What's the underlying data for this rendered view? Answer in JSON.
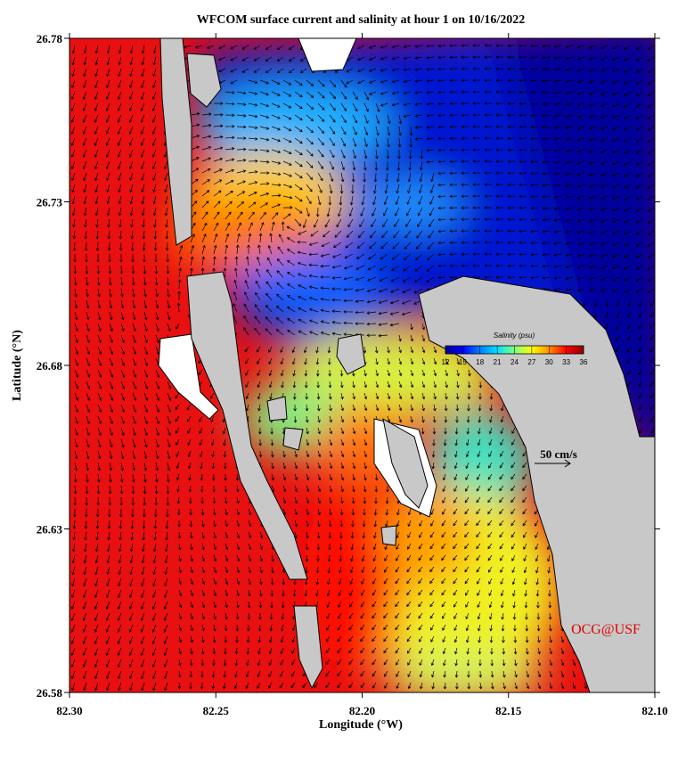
{
  "chart_data": {
    "type": "map",
    "title": "WFCOM surface current and salinity at hour 1 on 10/16/2022",
    "x_label": "Longitude (°W)",
    "y_label": "Latitude (°N)",
    "xlim": [
      82.3,
      82.1
    ],
    "xticks": [
      {
        "value": 82.3,
        "label": "82.30"
      },
      82.25,
      {
        "value": 82.2,
        "label": "82.20"
      },
      82.15,
      {
        "value": 82.1,
        "label": "82.10"
      }
    ],
    "ylim": [
      26.58,
      26.78
    ],
    "yticks": [
      26.58,
      26.63,
      26.68,
      26.73,
      26.78
    ],
    "colorbar": {
      "title": "Salinity (psu)",
      "lim": [
        12,
        36
      ],
      "ticks": [
        12,
        15,
        18,
        21,
        24,
        27,
        30,
        33,
        36
      ],
      "colors": [
        "#00008f",
        "#0000ff",
        "#0080ff",
        "#00e0ff",
        "#80ff80",
        "#ffff00",
        "#ff9000",
        "#ff0000",
        "#900000"
      ]
    },
    "scale_label": "50 cm/s",
    "credit": "OCG@USF"
  }
}
